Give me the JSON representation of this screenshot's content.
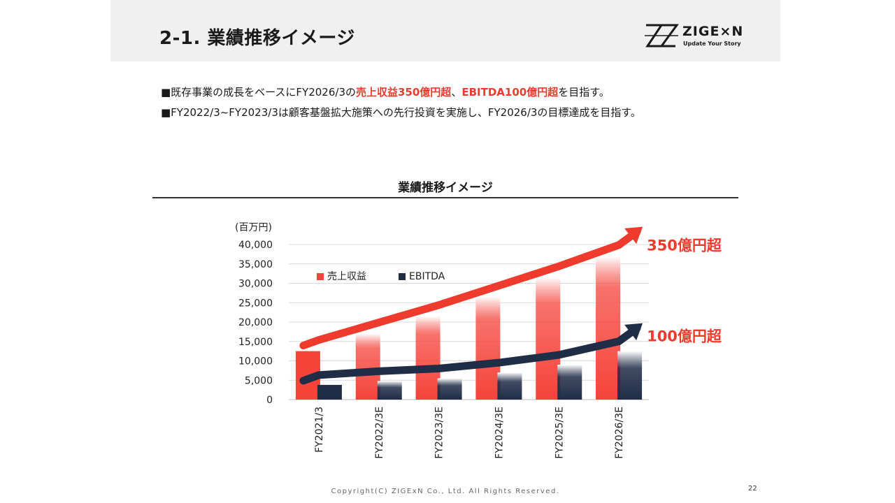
{
  "header": {
    "title": "2-1. 業績推移イメージ",
    "logo": {
      "name": "ZIGE×N",
      "tagline": "Update Your Story"
    }
  },
  "bullets": [
    {
      "parts": [
        {
          "text": "■既存事業の成長をベースにFY2026/3の",
          "highlight": false
        },
        {
          "text": "売上収益350億円超",
          "highlight": true
        },
        {
          "text": "、",
          "highlight": false
        },
        {
          "text": "EBITDA100億円超",
          "highlight": true
        },
        {
          "text": "を目指す。",
          "highlight": false
        }
      ]
    },
    {
      "parts": [
        {
          "text": "■FY2022/3~FY2023/3は顧客基盤拡大施策への先行投資を実施し、FY2026/3の目標達成を目指す。",
          "highlight": false
        }
      ]
    }
  ],
  "colors": {
    "revenue": "#f5433a",
    "ebitda": "#1f2d47",
    "accent": "#ee3b2e",
    "grid": "#d9d9d9"
  },
  "chart_data": {
    "type": "bar",
    "title": "業績推移イメージ",
    "ylabel": "(百万円)",
    "ylim": [
      0,
      40000
    ],
    "yticks": [
      "0",
      "5,000",
      "10,000",
      "15,000",
      "20,000",
      "25,000",
      "30,000",
      "35,000",
      "40,000"
    ],
    "categories": [
      "FY2021/3",
      "FY2022/3E",
      "FY2023/3E",
      "FY2024/3E",
      "FY2025/3E",
      "FY2026/3E"
    ],
    "series": [
      {
        "name": "売上収益",
        "values": [
          12500,
          17000,
          21500,
          26500,
          31500,
          37000
        ]
      },
      {
        "name": "EBITDA",
        "values": [
          3800,
          4800,
          5500,
          7000,
          9000,
          12500
        ]
      }
    ],
    "legend": "top-left",
    "grid": true,
    "annotations": [
      {
        "text": "350億円超",
        "series": "売上収益"
      },
      {
        "text": "100億円超",
        "series": "EBITDA"
      }
    ]
  },
  "footer": {
    "copyright": "Copyright(C)  ZIGExN Co., Ltd. All Rights Reserved.",
    "page_number": "22"
  }
}
